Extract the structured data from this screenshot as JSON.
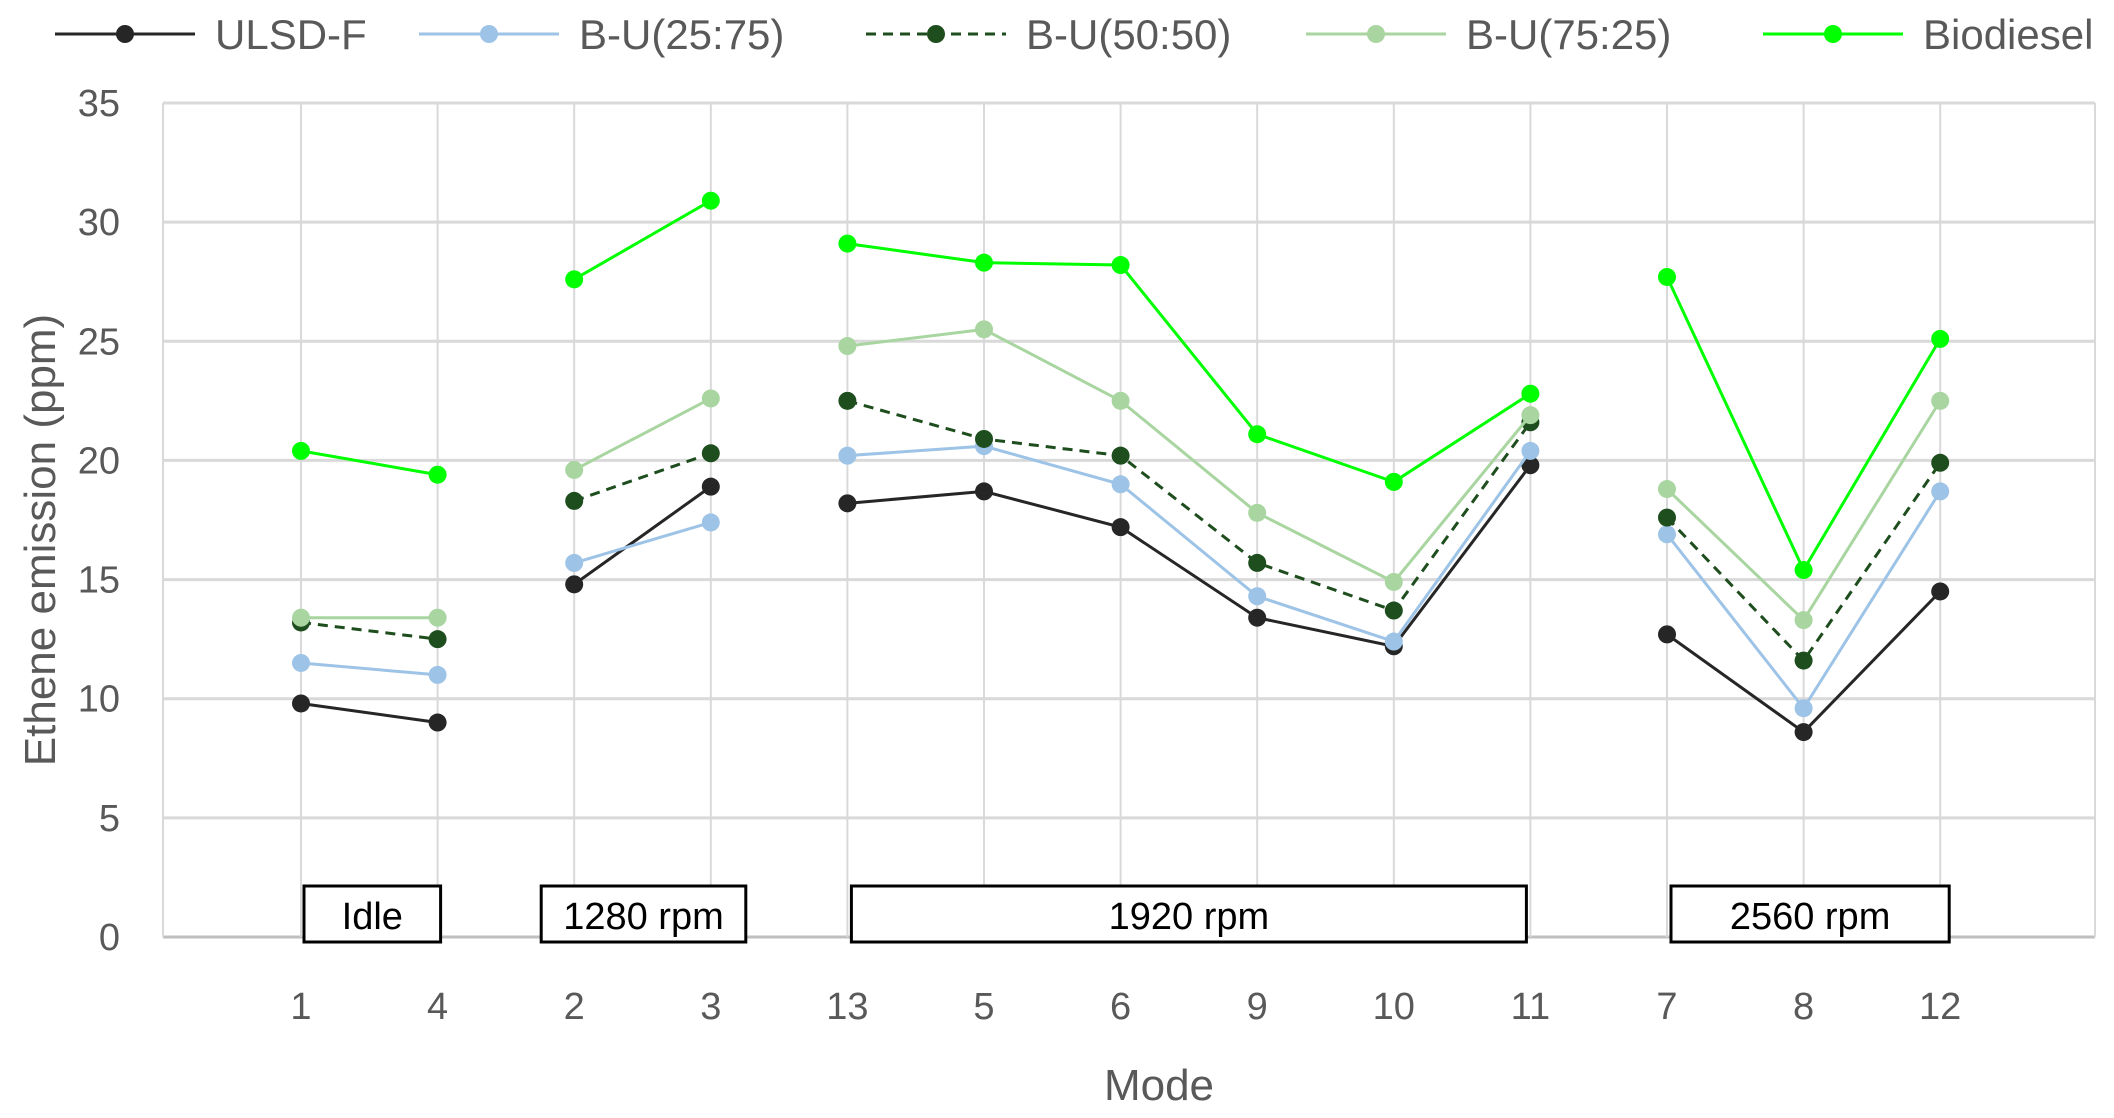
{
  "chart_data": {
    "type": "line",
    "title": "",
    "xlabel": "Mode",
    "ylabel": "Ethene emission (ppm)",
    "ylim": [
      0,
      35
    ],
    "yticks": [
      0,
      5,
      10,
      15,
      20,
      25,
      30,
      35
    ],
    "grid": true,
    "legend_position": "top",
    "categories": [
      "1",
      "4",
      "2",
      "3",
      "13",
      "5",
      "6",
      "9",
      "10",
      "11",
      "7",
      "8",
      "12"
    ],
    "segments": [
      [
        0,
        1
      ],
      [
        2,
        3
      ],
      [
        4,
        9
      ],
      [
        10,
        12
      ]
    ],
    "groups": [
      {
        "label": "Idle",
        "from": "1",
        "to": "4"
      },
      {
        "label": "1280 rpm",
        "from": "2",
        "to": "3"
      },
      {
        "label": "1920 rpm",
        "from": "13",
        "to": "11"
      },
      {
        "label": "2560 rpm",
        "from": "7",
        "to": "12"
      }
    ],
    "series": [
      {
        "name": "ULSD-F",
        "color": "#262626",
        "dashed": false,
        "values": [
          9.8,
          9.0,
          14.8,
          18.9,
          18.2,
          18.7,
          17.2,
          13.4,
          12.2,
          19.8,
          12.7,
          8.6,
          14.5
        ]
      },
      {
        "name": "B-U(25:75)",
        "color": "#9dc3e6",
        "dashed": false,
        "values": [
          11.5,
          11.0,
          15.7,
          17.4,
          20.2,
          20.6,
          19.0,
          14.3,
          12.4,
          20.4,
          16.9,
          9.6,
          18.7
        ]
      },
      {
        "name": "B-U(50:50)",
        "color": "#1e4d1e",
        "dashed": true,
        "values": [
          13.2,
          12.5,
          18.3,
          20.3,
          22.5,
          20.9,
          20.2,
          15.7,
          13.7,
          21.6,
          17.6,
          11.6,
          19.9
        ]
      },
      {
        "name": "B-U(75:25)",
        "color": "#a8d5a0",
        "dashed": false,
        "values": [
          13.4,
          13.4,
          19.6,
          22.6,
          24.8,
          25.5,
          22.5,
          17.8,
          14.9,
          21.9,
          18.8,
          13.3,
          22.5
        ]
      },
      {
        "name": "Biodiesel",
        "color": "#00ff00",
        "dashed": false,
        "values": [
          20.4,
          19.4,
          27.6,
          30.9,
          29.1,
          28.3,
          28.2,
          21.1,
          19.1,
          22.8,
          27.7,
          15.4,
          25.1
        ]
      }
    ]
  }
}
